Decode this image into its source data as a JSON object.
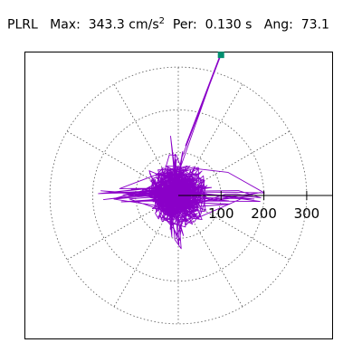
{
  "header": {
    "station": "PLRL",
    "max_label": "Max:",
    "max_value": "343.3",
    "max_unit": "cm/s",
    "max_unit_exp": "2",
    "per_label": "Per:",
    "per_value": "0.130 s",
    "ang_label": "Ang:",
    "ang_value": "73.1"
  },
  "chart_data": {
    "type": "polar-orbit",
    "title": "PLRL  Max: 343.3 cm/s² Per: 0.130 s Ang: 73.1",
    "radial_ticks": [
      100,
      200,
      300
    ],
    "radial_tick_labels": [
      "100",
      "200",
      "300"
    ],
    "ring_values": [
      100,
      200,
      300
    ],
    "spoke_angles_deg": [
      30,
      60,
      90,
      120,
      150,
      210,
      240,
      270,
      300,
      330
    ],
    "max_amplitude": 343.3,
    "max_angle_deg": 73.1,
    "marker_color": "#009070",
    "trace_color": "#8a00c8"
  }
}
